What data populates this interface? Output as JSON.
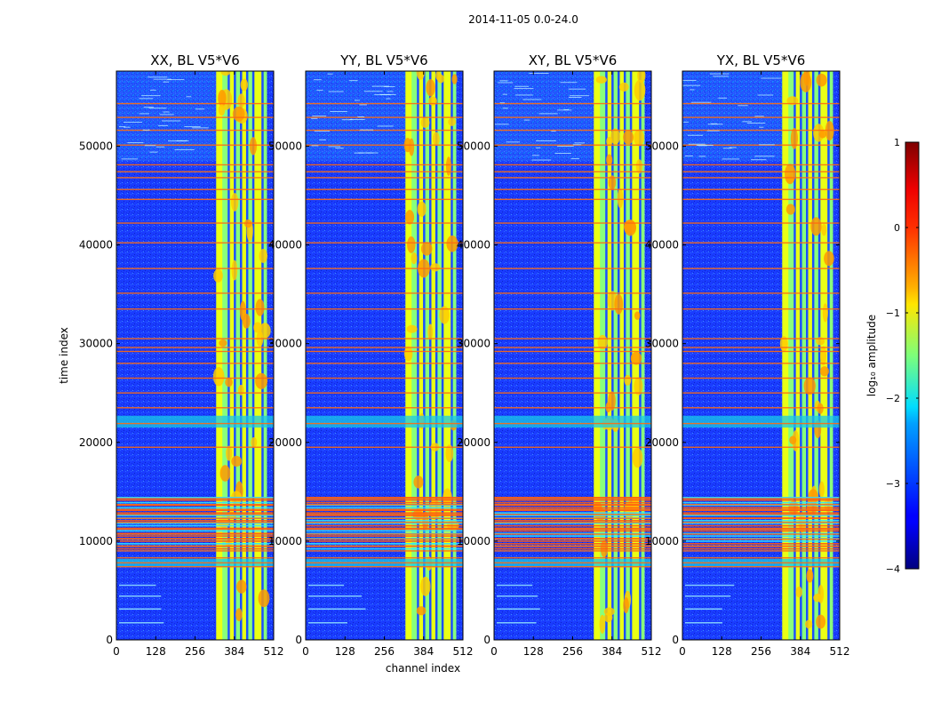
{
  "chart_data": {
    "type": "heatmap",
    "suptitle": "2014-11-05 0.0-24.0",
    "xlabel": "channel index",
    "ylabel": "time index",
    "xlim": [
      0,
      512
    ],
    "ylim": [
      0,
      57600
    ],
    "x_ticks": [
      "0",
      "128",
      "256",
      "384",
      "512"
    ],
    "y_ticks": [
      "0",
      "10000",
      "20000",
      "30000",
      "40000",
      "50000"
    ],
    "panels": [
      {
        "title": "XX, BL V5*V6",
        "pol": "XX"
      },
      {
        "title": "YY, BL V5*V6",
        "pol": "YY"
      },
      {
        "title": "XY, BL V5*V6",
        "pol": "XY"
      },
      {
        "title": "YX, BL V5*V6",
        "pol": "YX"
      }
    ],
    "colorbar": {
      "label": "log₁₀ amplitude",
      "range": [
        -4,
        1
      ],
      "ticks": [
        "1",
        "0",
        "−1",
        "−2",
        "−3",
        "−4"
      ],
      "tick_values": [
        1,
        0,
        -1,
        -2,
        -3,
        -4
      ],
      "colormap": "jet"
    },
    "bright_band_channels": [
      325,
      490
    ],
    "band_gap_channels": [
      365,
      385,
      405,
      425,
      445,
      475
    ],
    "rfi_rows_time_index": [
      7400,
      7800,
      8300,
      9000,
      9500,
      10200,
      10700,
      11200,
      11900,
      12300,
      12700,
      13200,
      13700,
      14300,
      19500,
      21900,
      23500,
      25000,
      26500,
      28000,
      29200,
      29600,
      30500,
      33500,
      35100,
      37600,
      40200,
      42200,
      44600,
      45600,
      46800,
      47400,
      48100,
      50100,
      51600,
      52900,
      54300
    ]
  }
}
